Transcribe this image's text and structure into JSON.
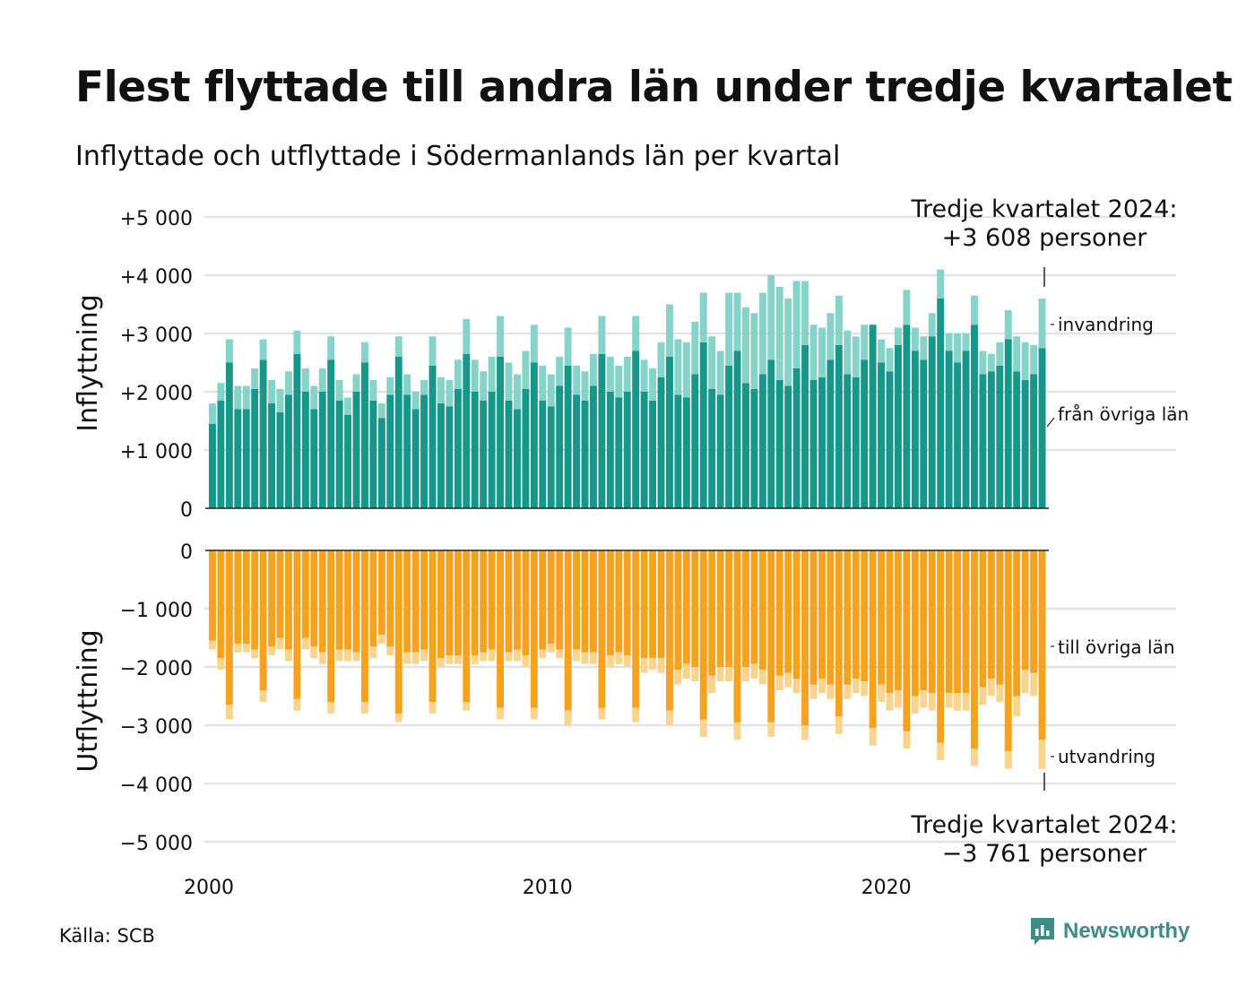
{
  "header": {
    "title": "Flest flyttade till andra län under tredje kvartalet",
    "subtitle": "Inflyttade och utflyttade i Södermanlands län per kvartal"
  },
  "footer": {
    "source": "Källa: SCB",
    "brand": "Newsworthy"
  },
  "colors": {
    "in_domestic": "#17968a",
    "in_immigration": "#86d3c9",
    "out_domestic": "#f5a21e",
    "out_emigration": "#f9d48f",
    "grid": "#e3e3e3",
    "brand": "#3d8c86"
  },
  "chart_data": [
    {
      "type": "bar",
      "stacked": true,
      "panel": "top",
      "ylabel": "Inflyttning",
      "ylim": [
        0,
        5000
      ],
      "yticks": [
        0,
        1000,
        2000,
        3000,
        4000,
        5000
      ],
      "ytick_labels": [
        "0",
        "+1 000",
        "+2 000",
        "+3 000",
        "+4 000",
        "+5 000"
      ],
      "xticks": [
        "2000",
        "2010",
        "2020"
      ],
      "x_start": "2000 Q1",
      "x_end": "2024 Q3",
      "annotation": "Tredje kvartalet 2024:\n+3 608 personer",
      "series": [
        {
          "name": "från övriga län",
          "values": [
            1450,
            1850,
            2500,
            1700,
            1700,
            2050,
            2550,
            1800,
            1650,
            1950,
            2650,
            2000,
            1700,
            2000,
            2550,
            1850,
            1600,
            2000,
            2500,
            1850,
            1550,
            1950,
            2600,
            1950,
            1700,
            1950,
            2450,
            1800,
            1750,
            2050,
            2650,
            2000,
            1850,
            2000,
            2600,
            1850,
            1700,
            2050,
            2500,
            1850,
            1750,
            2100,
            2450,
            1950,
            1850,
            2100,
            2650,
            2000,
            1900,
            2000,
            2700,
            2000,
            1850,
            2250,
            2600,
            1950,
            1900,
            2300,
            2850,
            2050,
            1950,
            2450,
            2700,
            2150,
            2050,
            2300,
            2550,
            2200,
            2100,
            2400,
            2800,
            2200,
            2250,
            2550,
            2800,
            2300,
            2250,
            2550,
            3150,
            2500,
            2350,
            2800,
            3150,
            2700,
            2550,
            2950,
            3600,
            2700,
            2500,
            2700,
            3150,
            2300,
            2350,
            2450,
            2900,
            2350,
            2200,
            2300,
            2750
          ]
        },
        {
          "name": "invandring",
          "values": [
            350,
            300,
            400,
            400,
            400,
            350,
            350,
            400,
            400,
            400,
            400,
            400,
            400,
            400,
            400,
            350,
            300,
            300,
            350,
            350,
            250,
            300,
            350,
            350,
            300,
            250,
            500,
            450,
            450,
            500,
            600,
            550,
            500,
            600,
            700,
            650,
            600,
            650,
            650,
            600,
            550,
            500,
            650,
            500,
            500,
            550,
            650,
            600,
            550,
            600,
            600,
            550,
            550,
            600,
            900,
            950,
            950,
            900,
            850,
            900,
            750,
            1250,
            1000,
            1300,
            1300,
            1400,
            1450,
            1600,
            1500,
            1500,
            1100,
            950,
            850,
            800,
            850,
            750,
            700,
            600,
            0,
            400,
            400,
            300,
            600,
            400,
            400,
            400,
            500,
            300,
            500,
            300,
            500,
            400,
            300,
            400,
            500,
            600,
            650,
            500,
            850
          ]
        }
      ]
    },
    {
      "type": "bar",
      "stacked": true,
      "panel": "bottom",
      "ylabel": "Utflyttning",
      "ylim": [
        -5000,
        0
      ],
      "yticks": [
        0,
        -1000,
        -2000,
        -3000,
        -4000,
        -5000
      ],
      "ytick_labels": [
        "0",
        "−1 000",
        "−2 000",
        "−3 000",
        "−4 000",
        "−5 000"
      ],
      "xticks": [
        "2000",
        "2010",
        "2020"
      ],
      "x_start": "2000 Q1",
      "x_end": "2024 Q3",
      "annotation": "Tredje kvartalet 2024:\n−3 761 personer",
      "series": [
        {
          "name": "till övriga län",
          "values": [
            -1550,
            -1850,
            -2650,
            -1600,
            -1600,
            -1700,
            -2400,
            -1650,
            -1500,
            -1700,
            -2550,
            -1500,
            -1650,
            -1750,
            -2600,
            -1700,
            -1700,
            -1750,
            -2600,
            -1650,
            -1450,
            -1650,
            -2800,
            -1750,
            -1750,
            -1700,
            -2600,
            -1850,
            -1800,
            -1800,
            -2600,
            -1800,
            -1750,
            -1700,
            -2700,
            -1750,
            -1700,
            -1800,
            -2700,
            -1700,
            -1600,
            -1700,
            -2750,
            -1700,
            -1750,
            -1750,
            -2700,
            -1800,
            -1750,
            -1800,
            -2700,
            -1850,
            -1850,
            -1850,
            -2750,
            -2050,
            -1950,
            -2000,
            -2900,
            -2150,
            -2000,
            -2000,
            -2950,
            -2000,
            -1950,
            -2050,
            -2950,
            -2150,
            -2100,
            -2200,
            -3000,
            -2300,
            -2200,
            -2300,
            -2850,
            -2300,
            -2200,
            -2250,
            -3050,
            -2300,
            -2450,
            -2400,
            -3100,
            -2500,
            -2400,
            -2450,
            -3300,
            -2450,
            -2450,
            -2450,
            -3400,
            -2350,
            -2200,
            -2300,
            -3450,
            -2500,
            -2050,
            -2100,
            -3250
          ]
        },
        {
          "name": "utvandring",
          "values": [
            -150,
            -200,
            -250,
            -150,
            -150,
            -150,
            -200,
            -150,
            -200,
            -200,
            -200,
            -200,
            -200,
            -200,
            -200,
            -200,
            -200,
            -150,
            -200,
            -200,
            -150,
            -150,
            -150,
            -200,
            -200,
            -200,
            -200,
            -150,
            -150,
            -150,
            -150,
            -150,
            -150,
            -200,
            -200,
            -150,
            -200,
            -200,
            -200,
            -150,
            -150,
            -150,
            -250,
            -200,
            -200,
            -200,
            -200,
            -200,
            -200,
            -200,
            -250,
            -250,
            -200,
            -250,
            -250,
            -250,
            -250,
            -250,
            -300,
            -300,
            -250,
            -250,
            -300,
            -250,
            -250,
            -250,
            -250,
            -250,
            -250,
            -250,
            -250,
            -250,
            -250,
            -250,
            -300,
            -250,
            -250,
            -250,
            -300,
            -300,
            -300,
            -300,
            -300,
            -300,
            -300,
            -300,
            -300,
            -250,
            -300,
            -300,
            -300,
            -300,
            -300,
            -300,
            -300,
            -350,
            -400,
            -400,
            -500
          ]
        }
      ]
    }
  ]
}
